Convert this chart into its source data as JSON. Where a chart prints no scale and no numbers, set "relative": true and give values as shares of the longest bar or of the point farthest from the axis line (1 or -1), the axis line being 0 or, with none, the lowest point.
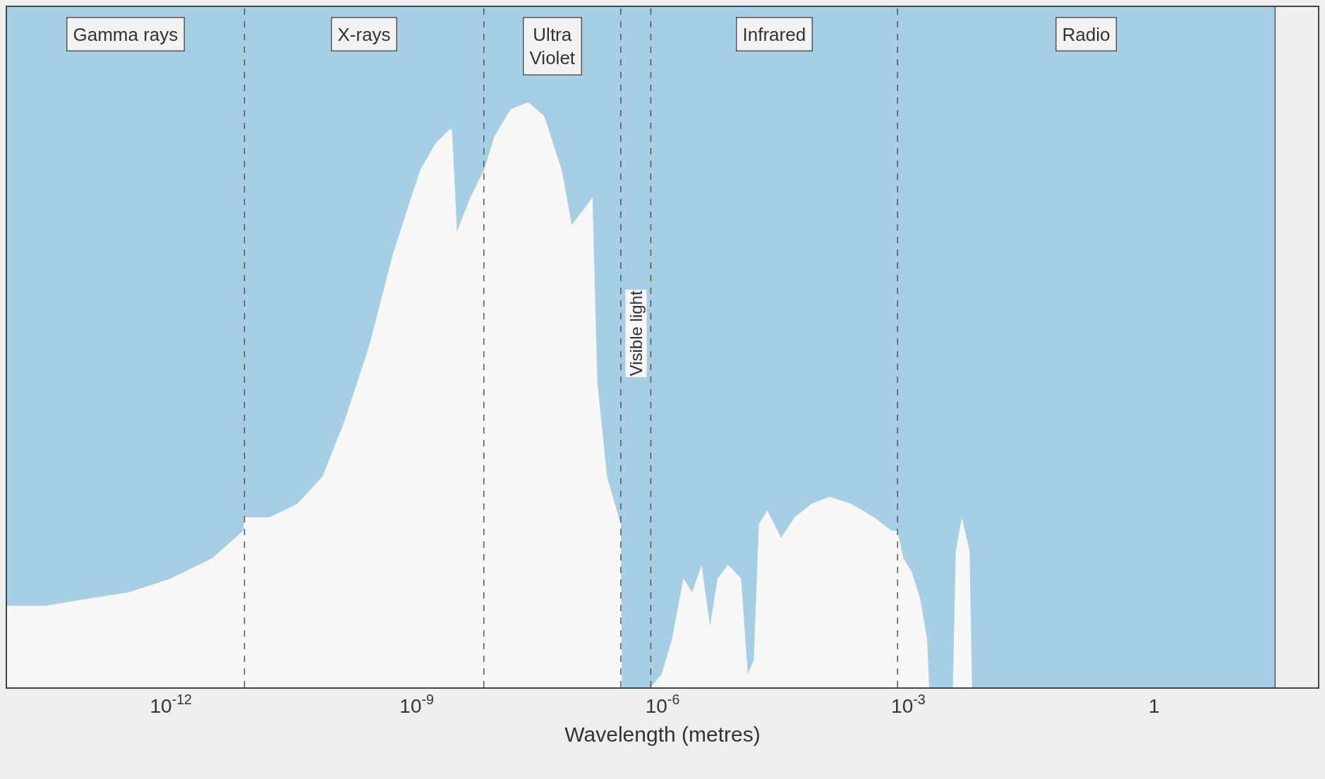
{
  "chart_data": {
    "type": "area",
    "stacked": true,
    "relative": true,
    "xlabel": "Wavelength (metres)",
    "log": "x",
    "x": [
      1e-14,
      2.9e-14,
      9.5e-14,
      3.1e-13,
      1e-12,
      3.2e-12,
      7.6e-12,
      7.9e-12,
      1.6e-11,
      3.5e-11,
      7.1e-11,
      1.3e-10,
      2.6e-10,
      5.2e-10,
      1.1e-09,
      1.7e-09,
      2.5e-09,
      2.7e-09,
      3.1e-09,
      4.5e-09,
      6.6e-09,
      8.9e-09,
      1.4e-08,
      2.3e-08,
      3.6e-08,
      5.9e-08,
      7.8e-08,
      1.05e-07,
      1.4e-07,
      1.6e-07,
      2.1e-07,
      3.1e-07,
      3.2e-07,
      7.2e-07,
      9.8e-07,
      1.3e-06,
      1.8e-06,
      2.3e-06,
      3e-06,
      3.8e-06,
      4.7e-06,
      6.3e-06,
      9.1e-06,
      1.1e-05,
      1.3e-05,
      1.5e-05,
      1.9e-05,
      2.8e-05,
      4.1e-05,
      6.6e-05,
      0.00011,
      0.0002,
      0.00038,
      0.00063,
      0.00074,
      0.00087,
      0.0011,
      0.0014,
      0.0017,
      0.0018,
      0.0035,
      0.0038,
      0.0045,
      0.0056,
      0.006,
      30
    ],
    "series": [
      {
        "color": "#f7f7f7",
        "values": [
          0.12,
          0.12,
          0.13,
          0.14,
          0.16,
          0.19,
          0.23,
          0.25,
          0.25,
          0.27,
          0.31,
          0.39,
          0.5,
          0.64,
          0.76,
          0.8,
          0.82,
          0.82,
          0.67,
          0.72,
          0.76,
          0.81,
          0.85,
          0.86,
          0.84,
          0.76,
          0.68,
          0.7,
          0.72,
          0.45,
          0.31,
          0.24,
          0,
          0,
          0.02,
          0.07,
          0.16,
          0.14,
          0.18,
          0.09,
          0.16,
          0.18,
          0.16,
          0.02,
          0.04,
          0.24,
          0.26,
          0.22,
          0.25,
          0.27,
          0.28,
          0.27,
          0.25,
          0.23,
          0.23,
          0.19,
          0.17,
          0.13,
          0.07,
          0,
          0,
          0.2,
          0.25,
          0.2,
          0,
          0
        ]
      },
      {
        "color": "#a6cfe6",
        "values": [
          0.88,
          0.88,
          0.87,
          0.86,
          0.84,
          0.81,
          0.77,
          0.75,
          0.75,
          0.73,
          0.69,
          0.61,
          0.5,
          0.36,
          0.24,
          0.2,
          0.18,
          0.18,
          0.33,
          0.28,
          0.24,
          0.19,
          0.15,
          0.14,
          0.16,
          0.24,
          0.32,
          0.3,
          0.28,
          0.55,
          0.69,
          0.76,
          1,
          1,
          0.98,
          0.93,
          0.84,
          0.86,
          0.82,
          0.91,
          0.84,
          0.82,
          0.84,
          0.98,
          0.96,
          0.76,
          0.74,
          0.78,
          0.75,
          0.73,
          0.72,
          0.73,
          0.75,
          0.77,
          0.77,
          0.81,
          0.83,
          0.87,
          0.93,
          1,
          1,
          0.8,
          0.75,
          0.8,
          1,
          1
        ]
      }
    ],
    "xlim": [
      1e-14,
      100
    ],
    "xticks": [
      {
        "value": 1e-12,
        "label": "10$^{-12}$"
      },
      {
        "value": 1e-09,
        "label": "10$^{-9}$"
      },
      {
        "value": 1e-06,
        "label": "10$^{-6}$"
      },
      {
        "value": 0.001,
        "label": "10$^{-3}$"
      },
      1
    ],
    "ref_lines": [
      {
        "axis": "x",
        "value": 7.9e-12,
        "line_style": "dashed"
      },
      {
        "axis": "x",
        "value": 6.6e-09,
        "line_style": "dashed"
      },
      {
        "axis": "x",
        "value": 3.1e-07,
        "line_style": "dashed"
      },
      {
        "axis": "x",
        "value": 7.2e-07,
        "line_style": "dashed"
      },
      {
        "axis": "x",
        "value": 0.00074,
        "line_style": "dashed"
      },
      {
        "axis": "x",
        "value": 30,
        "line_style": "solid"
      }
    ],
    "annotations": [
      "Gamma rays",
      "X-rays",
      "Ultra\nViolet",
      "Visible light",
      "Infrared",
      "Radio"
    ],
    "marker": "none"
  }
}
